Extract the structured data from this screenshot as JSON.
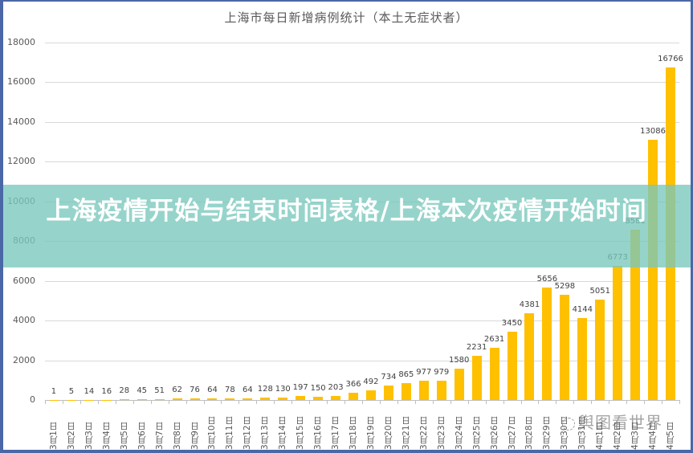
{
  "chart_data": {
    "type": "bar",
    "title": "上海市每日新增病例统计（本土无症状者）",
    "xlabel": "",
    "ylabel": "",
    "ylim": [
      0,
      18000
    ],
    "yticks": [
      0,
      2000,
      4000,
      6000,
      8000,
      10000,
      12000,
      14000,
      16000,
      18000
    ],
    "grid": true,
    "legend": null,
    "bar_color": "#ffc000",
    "categories": [
      "3月1日",
      "3月2日",
      "3月3日",
      "3月4日",
      "3月5日",
      "3月6日",
      "3月7日",
      "3月8日",
      "3月9日",
      "3月10日",
      "3月11日",
      "3月12日",
      "3月13日",
      "3月14日",
      "3月15日",
      "3月16日",
      "3月17日",
      "3月18日",
      "3月19日",
      "3月20日",
      "3月21日",
      "3月22日",
      "3月23日",
      "3月24日",
      "3月25日",
      "3月26日",
      "3月27日",
      "3月28日",
      "3月29日",
      "3月30日",
      "3月31日",
      "4月1日",
      "4月2日",
      "4月3日",
      "4月4日",
      "4月5日"
    ],
    "values": [
      1,
      5,
      14,
      16,
      28,
      45,
      51,
      62,
      76,
      64,
      78,
      64,
      128,
      130,
      197,
      150,
      203,
      366,
      492,
      734,
      865,
      977,
      979,
      1580,
      2231,
      2631,
      3450,
      4381,
      5656,
      5298,
      4144,
      5051,
      6773,
      8581,
      13086,
      16766
    ]
  },
  "banner": {
    "text": "上海疫情开始与结束时间表格/上海本次疫情开始时间",
    "color": "#8fd3c8"
  },
  "watermark": {
    "text": "舆图看世界"
  }
}
